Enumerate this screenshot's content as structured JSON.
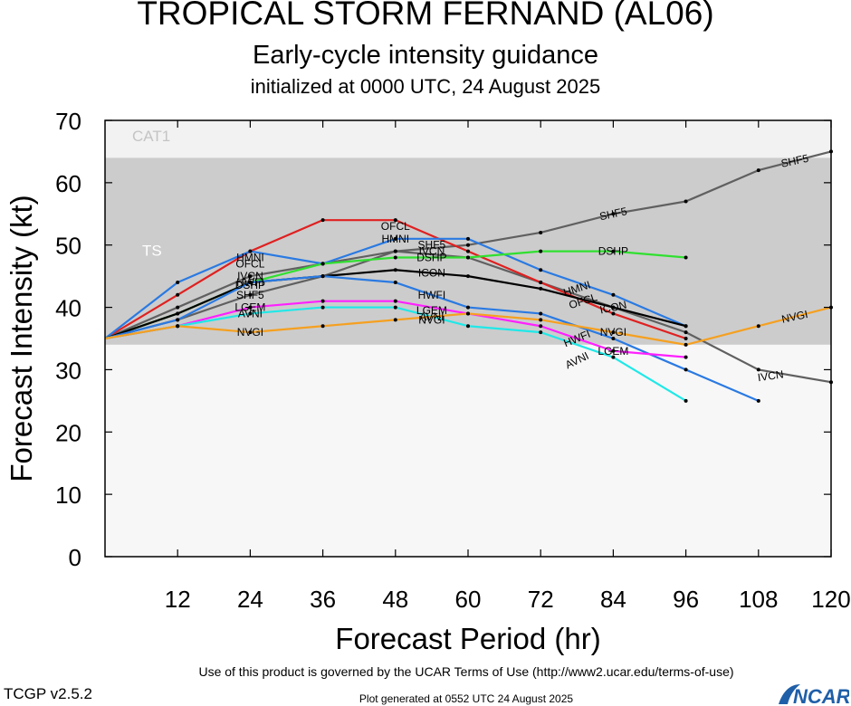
{
  "titles": {
    "main": "TROPICAL STORM FERNAND (AL06)",
    "subtitle": "Early-cycle intensity guidance",
    "init": "initialized at 0000 UTC, 24 August 2025"
  },
  "footer": {
    "terms": "Use of this product is governed by the UCAR Terms of Use (http://www2.ucar.edu/terms-of-use)",
    "version": "TCGP v2.5.2",
    "generated": "Plot generated at 0552 UTC   24 August 2025",
    "logo_text": "NCAR"
  },
  "chart_data": {
    "type": "line",
    "xlabel": "Forecast Period (hr)",
    "ylabel": "Forecast Intensity (kt)",
    "xlim": [
      0,
      120
    ],
    "ylim": [
      0,
      70
    ],
    "xticks": [
      12,
      24,
      36,
      48,
      60,
      72,
      84,
      96,
      108,
      120
    ],
    "yticks": [
      0,
      10,
      20,
      30,
      40,
      50,
      60,
      70
    ],
    "bands": [
      {
        "label": "CAT1",
        "from": 64,
        "to": 70,
        "color": "#f2f2f2",
        "label_color": "#c4c4c4"
      },
      {
        "label": "TS",
        "from": 34,
        "to": 64,
        "color": "#cccccc",
        "label_color": "#ffffff"
      },
      {
        "label": "",
        "from": 0,
        "to": 34,
        "color": "#f7f7f7",
        "label_color": ""
      }
    ],
    "series": [
      {
        "name": "SHF5",
        "color": "#606060",
        "x": [
          0,
          12,
          24,
          36,
          48,
          60,
          72,
          84,
          96,
          108,
          120
        ],
        "y": [
          35,
          38,
          42,
          45,
          49,
          50,
          52,
          55,
          57,
          62,
          65
        ]
      },
      {
        "name": "IVCN",
        "color": "#606060",
        "x": [
          0,
          12,
          24,
          36,
          48,
          60,
          72,
          84,
          96,
          108,
          120
        ],
        "y": [
          35,
          40,
          45,
          47,
          49,
          48,
          44,
          40,
          36,
          30,
          28
        ]
      },
      {
        "name": "OFCL",
        "color": "#e02020",
        "x": [
          0,
          12,
          24,
          36,
          48,
          60,
          72,
          84,
          96
        ],
        "y": [
          35,
          42,
          49,
          54,
          54,
          49,
          44,
          39,
          35
        ]
      },
      {
        "name": "HMNI",
        "color": "#2a7ae2",
        "x": [
          0,
          12,
          24,
          36,
          48,
          60,
          72,
          84,
          96
        ],
        "y": [
          35,
          44,
          49,
          47,
          51,
          51,
          46,
          42,
          37
        ]
      },
      {
        "name": "DSHP",
        "color": "#30e030",
        "x": [
          0,
          12,
          24,
          36,
          48,
          60,
          72,
          84,
          96
        ],
        "y": [
          35,
          39,
          44,
          47,
          48,
          48,
          49,
          49,
          48
        ]
      },
      {
        "name": "ICON",
        "color": "#000000",
        "x": [
          0,
          12,
          24,
          36,
          48,
          60,
          72,
          84,
          96
        ],
        "y": [
          35,
          39,
          44,
          45,
          46,
          45,
          43,
          40,
          37
        ]
      },
      {
        "name": "HWFI",
        "color": "#2a7ae2",
        "x": [
          0,
          12,
          24,
          36,
          48,
          60,
          72,
          84,
          96,
          108
        ],
        "y": [
          35,
          38,
          44,
          45,
          44,
          40,
          39,
          35,
          30,
          25
        ]
      },
      {
        "name": "LGEM",
        "color": "#ff20ff",
        "x": [
          0,
          12,
          24,
          36,
          48,
          60,
          72,
          84,
          96
        ],
        "y": [
          35,
          37,
          40,
          41,
          41,
          39,
          37,
          33,
          32
        ]
      },
      {
        "name": "AVNI",
        "color": "#20e8e8",
        "x": [
          0,
          12,
          24,
          36,
          48,
          60,
          72,
          84,
          96
        ],
        "y": [
          35,
          37,
          39,
          40,
          40,
          37,
          36,
          32,
          25
        ]
      },
      {
        "name": "NVGI",
        "color": "#f5a020",
        "x": [
          0,
          12,
          24,
          36,
          48,
          60,
          72,
          84,
          96,
          108,
          120
        ],
        "y": [
          35,
          37,
          36,
          37,
          38,
          39,
          38,
          36,
          34,
          37,
          40
        ]
      }
    ],
    "labels": [
      {
        "text": "HMNI",
        "x": 24,
        "y": 48,
        "rot": 0
      },
      {
        "text": "OFCL",
        "x": 24,
        "y": 47,
        "rot": 0
      },
      {
        "text": "IVCN",
        "x": 24,
        "y": 45,
        "rot": 0
      },
      {
        "text": "HWFI",
        "x": 24,
        "y": 44,
        "rot": 0
      },
      {
        "text": "DSHP",
        "x": 24,
        "y": 43.6,
        "rot": 0
      },
      {
        "text": "SHF5",
        "x": 24,
        "y": 42,
        "rot": 0
      },
      {
        "text": "LGEM",
        "x": 24,
        "y": 40,
        "rot": 0
      },
      {
        "text": "AVNI",
        "x": 24,
        "y": 39,
        "rot": 0
      },
      {
        "text": "NVGI",
        "x": 24,
        "y": 36,
        "rot": 0
      },
      {
        "text": "OFCL",
        "x": 48,
        "y": 53,
        "rot": 0
      },
      {
        "text": "HMNI",
        "x": 48,
        "y": 51,
        "rot": 0
      },
      {
        "text": "SHF5",
        "x": 54,
        "y": 50,
        "rot": 0
      },
      {
        "text": "IVCN",
        "x": 54,
        "y": 49,
        "rot": 0
      },
      {
        "text": "DSHP",
        "x": 54,
        "y": 48,
        "rot": 0
      },
      {
        "text": "ICON",
        "x": 54,
        "y": 45.5,
        "rot": 0
      },
      {
        "text": "HWFI",
        "x": 54,
        "y": 42,
        "rot": 0
      },
      {
        "text": "LGEM",
        "x": 54,
        "y": 39.5,
        "rot": 0
      },
      {
        "text": "AVNI",
        "x": 54,
        "y": 38.5,
        "rot": 0
      },
      {
        "text": "NVGI",
        "x": 54,
        "y": 38,
        "rot": 0
      },
      {
        "text": "SHF5",
        "x": 84,
        "y": 55,
        "rot": -12
      },
      {
        "text": "DSHP",
        "x": 84,
        "y": 49,
        "rot": 0
      },
      {
        "text": "HMNI",
        "x": 78,
        "y": 43,
        "rot": -18
      },
      {
        "text": "OFCL",
        "x": 79,
        "y": 41,
        "rot": -18
      },
      {
        "text": "ICON",
        "x": 84,
        "y": 40,
        "rot": -12
      },
      {
        "text": "NVGI",
        "x": 84,
        "y": 36,
        "rot": 0
      },
      {
        "text": "HWFI",
        "x": 78,
        "y": 35,
        "rot": -22
      },
      {
        "text": "LGEM",
        "x": 84,
        "y": 33,
        "rot": 0
      },
      {
        "text": "AVNI",
        "x": 78,
        "y": 31.5,
        "rot": -26
      },
      {
        "text": "SHF5",
        "x": 114,
        "y": 63.5,
        "rot": -12
      },
      {
        "text": "NVGI",
        "x": 114,
        "y": 38.5,
        "rot": -12
      },
      {
        "text": "IVCN",
        "x": 110,
        "y": 29,
        "rot": -8
      }
    ]
  }
}
